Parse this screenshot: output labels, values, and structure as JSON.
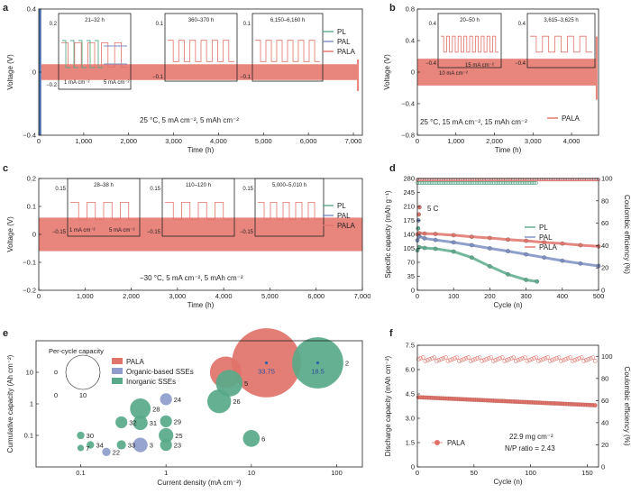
{
  "colors": {
    "pl": "#5bab8c",
    "pal": "#7b8fc4",
    "pala": "#e0736a",
    "pala_fill": "#e8857c",
    "inorganic": "#58a98a",
    "organic": "#8f9ccc",
    "cyclic_blue": "#2f63a8"
  },
  "chart_data": [
    {
      "id": "a",
      "type": "line",
      "title": "25 °C,   5 mA cm⁻², 5 mAh cm⁻²",
      "xlabel": "Time (h)",
      "ylabel": "Voltage (V)",
      "xlim": [
        0,
        7200
      ],
      "ylim": [
        -0.4,
        0.4
      ],
      "xticks": [
        0,
        1000,
        2000,
        3000,
        4000,
        5000,
        6000,
        7000
      ],
      "xtick_labels": [
        "0",
        "1,000",
        "2,000",
        "3,000",
        "4,000",
        "5,000",
        "6,000",
        "7,000"
      ],
      "yticks": [
        -0.4,
        0,
        0.4
      ],
      "ytick_labels": [
        "−0.4",
        "0",
        "0.4"
      ],
      "series": [
        {
          "name": "PL",
          "x_end": 40
        },
        {
          "name": "PAL",
          "x_end": 60
        },
        {
          "name": "PALA",
          "x_end": 7100,
          "band": [
            -0.05,
            0.05
          ]
        }
      ],
      "insets": [
        {
          "title": "21–32 h",
          "yticks": [
            "0.2",
            "−0.2"
          ],
          "annotations": [
            "1 mA cm⁻²",
            "5 mA cm⁻²"
          ]
        },
        {
          "title": "360–370 h",
          "yticks": [
            "0.1",
            "−0.1"
          ]
        },
        {
          "title": "6,150–6,160 h",
          "yticks": [
            "0.1",
            "−0.1"
          ]
        }
      ]
    },
    {
      "id": "b",
      "type": "line",
      "title": "25 °C, 15 mA cm⁻², 15 mAh cm⁻²",
      "xlabel": "Time (h)",
      "ylabel": "Voltage (V)",
      "xlim": [
        0,
        4700
      ],
      "ylim": [
        -0.8,
        0.8
      ],
      "xticks": [
        0,
        1000,
        2000,
        3000,
        4000
      ],
      "xtick_labels": [
        "0",
        "1,000",
        "2,000",
        "3,000",
        "4,000"
      ],
      "yticks": [
        -0.8,
        -0.4,
        0,
        0.4,
        0.8
      ],
      "ytick_labels": [
        "−0.8",
        "−0.4",
        "0",
        "0.4",
        "0.8"
      ],
      "series": [
        {
          "name": "PALA",
          "x_end": 4650,
          "band": [
            -0.17,
            0.17
          ]
        }
      ],
      "insets": [
        {
          "title": "20–50 h",
          "yticks": [
            "0.4",
            "−0.4"
          ],
          "annotations": [
            "10 mA cm⁻²",
            "15 mA cm⁻²"
          ]
        },
        {
          "title": "3,615–3,625 h",
          "yticks": [
            "0.4",
            "−0.4"
          ]
        }
      ]
    },
    {
      "id": "c",
      "type": "line",
      "title": "−30 °C,   5 mA cm⁻², 5 mAh cm⁻²",
      "xlabel": "Time (h)",
      "ylabel": "Voltage (V)",
      "xlim": [
        0,
        7000
      ],
      "ylim": [
        -0.2,
        0.2
      ],
      "xticks": [
        0,
        1000,
        2000,
        3000,
        4000,
        5000,
        6000,
        7000
      ],
      "xtick_labels": [
        "0",
        "1,000",
        "2,000",
        "3,000",
        "4,000",
        "5,000",
        "6,000",
        "7,000"
      ],
      "yticks": [
        -0.2,
        -0.1,
        0,
        0.1,
        0.2
      ],
      "ytick_labels": [
        "−0.2",
        "−0.1",
        "0",
        "0.1",
        "0.2"
      ],
      "series": [
        {
          "name": "PL",
          "x_end": 0
        },
        {
          "name": "PAL",
          "x_end": 0
        },
        {
          "name": "PALA",
          "x_end": 7000,
          "band": [
            -0.06,
            0.06
          ]
        }
      ],
      "insets": [
        {
          "title": "28–38 h",
          "yticks": [
            "0.15",
            "−0.15"
          ],
          "annotations": [
            "1 mA cm⁻²",
            "5 mA cm⁻²"
          ]
        },
        {
          "title": "110–120 h",
          "yticks": [
            "0.15",
            "−0.15"
          ]
        },
        {
          "title": "5,000–5,010 h",
          "yticks": [
            "0.15",
            "−0.15"
          ]
        }
      ]
    },
    {
      "id": "d",
      "type": "scatter",
      "xlabel": "Cycle (n)",
      "ylabel": "Specific capacity (mAh g⁻¹)",
      "ylabel_right": "Coulombic efficiency (%)",
      "xlim": [
        0,
        500
      ],
      "ylim": [
        0,
        280
      ],
      "ylim_right": [
        0,
        100
      ],
      "xticks": [
        0,
        100,
        200,
        300,
        400,
        500
      ],
      "yticks": [
        0,
        35,
        70,
        105,
        140,
        175,
        210,
        245,
        280
      ],
      "yticks_right": [
        0,
        20,
        40,
        60,
        80,
        100
      ],
      "annotation": "5 C",
      "series": [
        {
          "name": "PL",
          "x": [
            0,
            5,
            20,
            50,
            100,
            150,
            200,
            250,
            300,
            330
          ],
          "y": [
            100,
            108,
            106,
            104,
            97,
            82,
            60,
            40,
            26,
            22
          ],
          "ce_end": 330,
          "ce": 96
        },
        {
          "name": "PAL",
          "x": [
            0,
            5,
            20,
            50,
            100,
            150,
            200,
            250,
            300,
            350,
            400,
            450,
            500
          ],
          "y": [
            125,
            135,
            130,
            126,
            120,
            113,
            105,
            98,
            90,
            82,
            74,
            67,
            61
          ],
          "ce_end": 500,
          "ce": 99
        },
        {
          "name": "PALA",
          "x": [
            0,
            5,
            20,
            50,
            100,
            150,
            200,
            250,
            300,
            350,
            400,
            450,
            500
          ],
          "y": [
            140,
            143,
            142,
            141,
            138,
            134,
            131,
            127,
            124,
            120,
            117,
            113,
            110
          ],
          "ce_end": 500,
          "ce": 99
        }
      ],
      "early_points": [
        {
          "series": "PL",
          "x": 2,
          "y": 155
        },
        {
          "series": "PAL",
          "x": 3,
          "y": 175
        },
        {
          "series": "PALA",
          "x": 4,
          "y": 190
        },
        {
          "series": "PALA",
          "x": 6,
          "y": 208
        }
      ]
    },
    {
      "id": "e",
      "type": "scatter",
      "xlabel": "Current density (mA cm⁻²)",
      "ylabel": "Cumulative capacity (Ah cm⁻²)",
      "xlim": [
        0.03,
        200
      ],
      "ylim": [
        0.01,
        100
      ],
      "xscale": "log",
      "yscale": "log",
      "xtick_values": [
        0.1,
        1,
        10,
        100
      ],
      "xtick_labels": [
        "0.1",
        "1",
        "10",
        "100"
      ],
      "ytick_values": [
        0.1,
        1,
        10
      ],
      "ytick_labels": [
        "0.1",
        "1",
        "10"
      ],
      "size_legend_title": "Per-cycle capacity",
      "size_legend_labels": [
        "0",
        "10"
      ],
      "legend": [
        "PALA",
        "Organic-based SSEs",
        "Inorganic SSEs"
      ],
      "points": [
        {
          "label": "2",
          "x": 60,
          "y": 20,
          "r": 18.5,
          "group": "Inorganic SSEs",
          "value_label": "18.5"
        },
        {
          "label": "",
          "x": 15,
          "y": 20,
          "r": 33.75,
          "group": "PALA",
          "value_label": "33.75"
        },
        {
          "label": "",
          "x": 5,
          "y": 10,
          "r": 7,
          "group": "PALA"
        },
        {
          "label": "5",
          "x": 5.5,
          "y": 4.5,
          "r": 5,
          "group": "Inorganic SSEs"
        },
        {
          "label": "26",
          "x": 4.2,
          "y": 1.2,
          "r": 4,
          "group": "Inorganic SSEs"
        },
        {
          "label": "24",
          "x": 1,
          "y": 1.4,
          "r": 1,
          "group": "Organic-based SSEs"
        },
        {
          "label": "28",
          "x": 0.5,
          "y": 0.7,
          "r": 3,
          "group": "Inorganic SSEs"
        },
        {
          "label": "29",
          "x": 1,
          "y": 0.28,
          "r": 1,
          "group": "Inorganic SSEs"
        },
        {
          "label": "31",
          "x": 0.5,
          "y": 0.25,
          "r": 1.5,
          "group": "Inorganic SSEs"
        },
        {
          "label": "32",
          "x": 0.3,
          "y": 0.26,
          "r": 1,
          "group": "Inorganic SSEs"
        },
        {
          "label": "25",
          "x": 1,
          "y": 0.1,
          "r": 1.5,
          "group": "Inorganic SSEs"
        },
        {
          "label": "23",
          "x": 1,
          "y": 0.05,
          "r": 1,
          "group": "Inorganic SSEs"
        },
        {
          "label": "3",
          "x": 0.5,
          "y": 0.05,
          "r": 1.5,
          "group": "Organic-based SSEs"
        },
        {
          "label": "33",
          "x": 0.3,
          "y": 0.05,
          "r": 0.6,
          "group": "Inorganic SSEs"
        },
        {
          "label": "34",
          "x": 0.13,
          "y": 0.05,
          "r": 0.4,
          "group": "Inorganic SSEs"
        },
        {
          "label": "22",
          "x": 0.2,
          "y": 0.03,
          "r": 0.5,
          "group": "Organic-based SSEs"
        },
        {
          "label": "30",
          "x": 0.1,
          "y": 0.1,
          "r": 0.4,
          "group": "Inorganic SSEs"
        },
        {
          "label": "7",
          "x": 0.1,
          "y": 0.04,
          "r": 0.3,
          "group": "Inorganic SSEs"
        },
        {
          "label": "6",
          "x": 10,
          "y": 0.08,
          "r": 2,
          "group": "Inorganic SSEs"
        }
      ]
    },
    {
      "id": "f",
      "type": "scatter",
      "xlabel": "Cycle (n)",
      "ylabel": "Discharge capacity (mAh cm⁻²)",
      "ylabel_right": "Coulombic efficiency (%)",
      "xlim": [
        0,
        160
      ],
      "ylim": [
        0,
        7.5
      ],
      "ylim_right": [
        0,
        110
      ],
      "xticks": [
        0,
        50,
        100,
        150
      ],
      "yticks": [
        0,
        1.5,
        3.0,
        4.5,
        6.0,
        7.5
      ],
      "ytick_labels": [
        "0",
        "1.5",
        "3.0",
        "4.5",
        "6.0",
        "7.5"
      ],
      "yticks_right": [
        0,
        20,
        40,
        60,
        80,
        100
      ],
      "legend": [
        "PALA"
      ],
      "annotation_1": "22.9 mg cm⁻²",
      "annotation_2": "N/P ratio = 2.43",
      "series": [
        {
          "name": "PALA",
          "cap_start": 4.3,
          "cap_end": 3.8,
          "ce": 99
        }
      ]
    }
  ]
}
